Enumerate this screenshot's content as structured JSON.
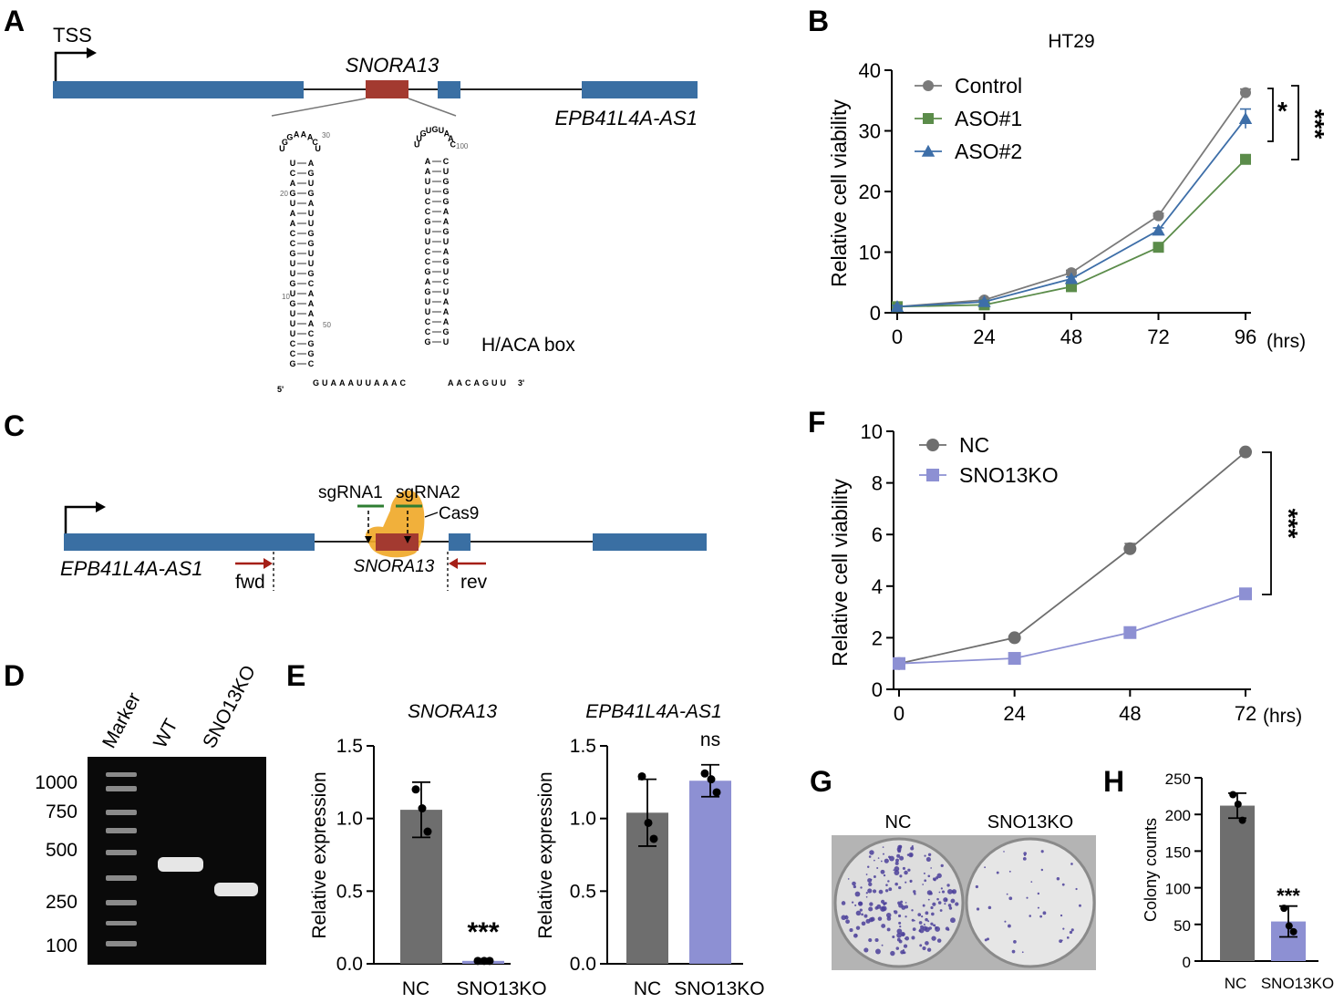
{
  "panels": {
    "A": {
      "letter": "A",
      "tss": "TSS",
      "snora_label": "SNORA13",
      "host_label": "EPB41L4A-AS1",
      "box_label": "H/ACA box",
      "seq_5": "5'",
      "seq_3": "3'",
      "seq_hinge": "GUAAAUUAAAC",
      "seq_tail": "AACAGUU",
      "num_10": "10",
      "num_20": "20",
      "num_30": "30",
      "num_50": "50",
      "num_100": "100",
      "hairpin1_loop": [
        "U",
        "G",
        "G",
        "A",
        "A",
        "A",
        "C",
        "U"
      ],
      "hairpin1_left": [
        "U",
        "C",
        "A",
        "G",
        "U",
        "A",
        "A",
        "C",
        "C",
        "G",
        "U",
        "U",
        "G",
        "U",
        "G",
        "U",
        "U",
        "U",
        "C",
        "C",
        "G"
      ],
      "hairpin1_right": [
        "A",
        "G",
        "U",
        "G",
        "A",
        "U",
        "U",
        "G",
        "G",
        "U",
        "U",
        "G",
        "C",
        "A",
        "A",
        "A",
        "A",
        "C",
        "G",
        "G",
        "C"
      ],
      "hairpin2_loop": [
        "U",
        "U",
        "G",
        "U",
        "G",
        "U",
        "A",
        "A",
        "C"
      ],
      "hairpin2_left": [
        "A",
        "A",
        "U",
        "U",
        "C",
        "C",
        "G",
        "U",
        "U",
        "C",
        "C",
        "G",
        "A",
        "G",
        "U",
        "U",
        "C",
        "C",
        "G"
      ],
      "hairpin2_right": [
        "C",
        "U",
        "G",
        "G",
        "G",
        "A",
        "A",
        "G",
        "U",
        "A",
        "G",
        "U",
        "C",
        "U",
        "A",
        "A",
        "A",
        "G",
        "U"
      ]
    },
    "B": {
      "letter": "B",
      "sig_star1": "*",
      "sig_star3": "***",
      "unit_label": "(hrs)"
    },
    "C": {
      "letter": "C",
      "sg1": "sgRNA1",
      "sg2": "sgRNA2",
      "cas9": "Cas9",
      "host_label": "EPB41L4A-AS1",
      "snora_label": "SNORA13",
      "fwd": "fwd",
      "rev": "rev"
    },
    "D": {
      "letter": "D",
      "lanes": [
        "Marker",
        "WT",
        "SNO13KO"
      ],
      "ladder": [
        "1000",
        "750",
        "500",
        "250",
        "100"
      ]
    },
    "E": {
      "letter": "E"
    },
    "F": {
      "letter": "F",
      "sig_star3": "***",
      "unit_label": "(hrs)"
    },
    "G": {
      "letter": "G",
      "plates": [
        "NC",
        "SNO13KO"
      ]
    },
    "H": {
      "letter": "H"
    }
  },
  "colors": {
    "exon_blue": "#3a6fa3",
    "snora_red": "#a33a30",
    "cas9_orange": "#f0a92a",
    "sgrna_green": "#2e7d32",
    "primer_red": "#a51f17",
    "control_gray": "#7a7a7a",
    "aso1_green": "#5b8c4a",
    "aso2_blue": "#3d6ea8",
    "nc_gray": "#6e6e6e",
    "ko_lavender": "#8d90d3",
    "bar_gray": "#6e6e6e",
    "stain_purple": "#4b3f9a"
  },
  "chart_data": [
    {
      "id": "B",
      "type": "line",
      "title": "HT29",
      "xlabel": "",
      "ylabel": "Relative cell viability",
      "x": [
        0,
        24,
        48,
        72,
        96
      ],
      "xticks": [
        "0",
        "24",
        "48",
        "72",
        "96"
      ],
      "ylim": [
        0,
        40
      ],
      "yticks": [
        0,
        10,
        20,
        30,
        40
      ],
      "legend": "top-left",
      "series": [
        {
          "name": "Control",
          "marker": "circle",
          "color": "#7a7a7a",
          "values": [
            1.0,
            2.1,
            6.6,
            16.0,
            36.3
          ],
          "err": [
            0.2,
            0.3,
            0.4,
            0.4,
            0.6
          ]
        },
        {
          "name": "ASO#1",
          "marker": "square",
          "color": "#5b8c4a",
          "values": [
            1.0,
            1.3,
            4.3,
            10.8,
            25.3
          ],
          "err": [
            0.2,
            0.2,
            0.4,
            0.5,
            0.6
          ]
        },
        {
          "name": "ASO#2",
          "marker": "triangle",
          "color": "#3d6ea8",
          "values": [
            1.0,
            1.8,
            5.6,
            13.6,
            32.0
          ],
          "err": [
            0.2,
            0.2,
            0.3,
            0.4,
            1.6
          ]
        }
      ]
    },
    {
      "id": "F",
      "type": "line",
      "title": "",
      "xlabel": "",
      "ylabel": "Relative cell viability",
      "x": [
        0,
        24,
        48,
        72
      ],
      "xticks": [
        "0",
        "24",
        "48",
        "72"
      ],
      "ylim": [
        0,
        10
      ],
      "yticks": [
        0,
        2,
        4,
        6,
        8,
        10
      ],
      "legend": "top-left",
      "series": [
        {
          "name": "NC",
          "marker": "circle",
          "color": "#6e6e6e",
          "values": [
            1.0,
            2.0,
            5.45,
            9.2
          ],
          "err": [
            0.05,
            0.08,
            0.2,
            0.08
          ]
        },
        {
          "name": "SNO13KO",
          "marker": "square",
          "color": "#8d90d3",
          "values": [
            1.0,
            1.2,
            2.2,
            3.7
          ],
          "err": [
            0.05,
            0.05,
            0.08,
            0.06
          ]
        }
      ]
    },
    {
      "id": "E1",
      "type": "bar",
      "title": "SNORA13",
      "ylabel": "Relative expression",
      "categories": [
        "NC",
        "SNO13KO"
      ],
      "values": [
        1.06,
        0.02
      ],
      "err": [
        0.19,
        0.0
      ],
      "points": [
        [
          1.2,
          1.07,
          0.91
        ],
        [
          0.02,
          0.02,
          0.02
        ]
      ],
      "ylim": [
        0,
        1.5
      ],
      "yticks": [
        "0.0",
        "0.5",
        "1.0",
        "1.5"
      ],
      "annotations": [
        "",
        "***"
      ]
    },
    {
      "id": "E2",
      "type": "bar",
      "title": "EPB41L4A-AS1",
      "ylabel": "Relative expression",
      "categories": [
        "NC",
        "SNO13KO"
      ],
      "values": [
        1.04,
        1.26
      ],
      "err": [
        0.23,
        0.11
      ],
      "points": [
        [
          1.29,
          0.97,
          0.86
        ],
        [
          1.31,
          1.27,
          1.18
        ]
      ],
      "ylim": [
        0,
        1.5
      ],
      "yticks": [
        "0.0",
        "0.5",
        "1.0",
        "1.5"
      ],
      "annotations": [
        "",
        "ns"
      ]
    },
    {
      "id": "H",
      "type": "bar",
      "title": "",
      "ylabel": "Colony counts",
      "categories": [
        "NC",
        "SNO13KO"
      ],
      "values": [
        212,
        54
      ],
      "err": [
        17,
        21
      ],
      "points": [
        [
          227,
          214,
          192
        ],
        [
          72,
          48,
          40
        ]
      ],
      "ylim": [
        0,
        250
      ],
      "yticks": [
        "0",
        "50",
        "100",
        "150",
        "200",
        "250"
      ],
      "annotations": [
        "",
        "***"
      ]
    }
  ]
}
